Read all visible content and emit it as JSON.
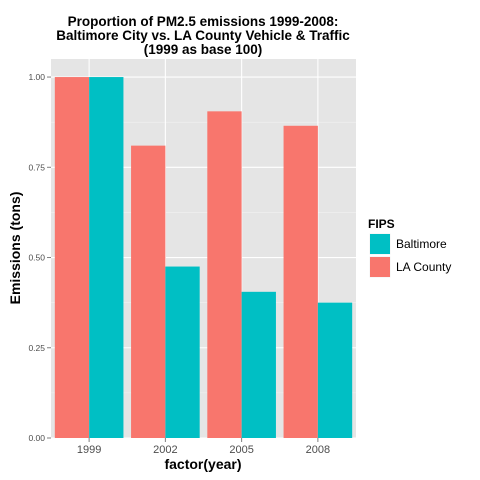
{
  "chart_data": {
    "type": "bar",
    "title": [
      "Proportion of PM2.5 emissions 1999-2008:",
      "Baltimore City vs. LA County Vehicle & Traffic",
      "(1999 as base 100)"
    ],
    "xlabel": "factor(year)",
    "ylabel": "Emissions (tons)",
    "categories": [
      "1999",
      "2002",
      "2005",
      "2008"
    ],
    "ylim": [
      0,
      1.05
    ],
    "yticks": [
      {
        "value": 0,
        "label": "0.00"
      },
      {
        "value": 0.25,
        "label": "0.25"
      },
      {
        "value": 0.5,
        "label": "0.50"
      },
      {
        "value": 0.75,
        "label": "0.75"
      },
      {
        "value": 1.0,
        "label": "1.00"
      }
    ],
    "grid": true,
    "legend": {
      "title": "FIPS",
      "placement": "right"
    },
    "series": [
      {
        "name": "LA County",
        "color": "#F8766D",
        "values": [
          1.0,
          0.81,
          0.905,
          0.865
        ]
      },
      {
        "name": "Baltimore",
        "color": "#00BFC4",
        "values": [
          1.0,
          0.475,
          0.405,
          0.375
        ]
      }
    ],
    "legend_order": [
      "Baltimore",
      "LA County"
    ]
  }
}
